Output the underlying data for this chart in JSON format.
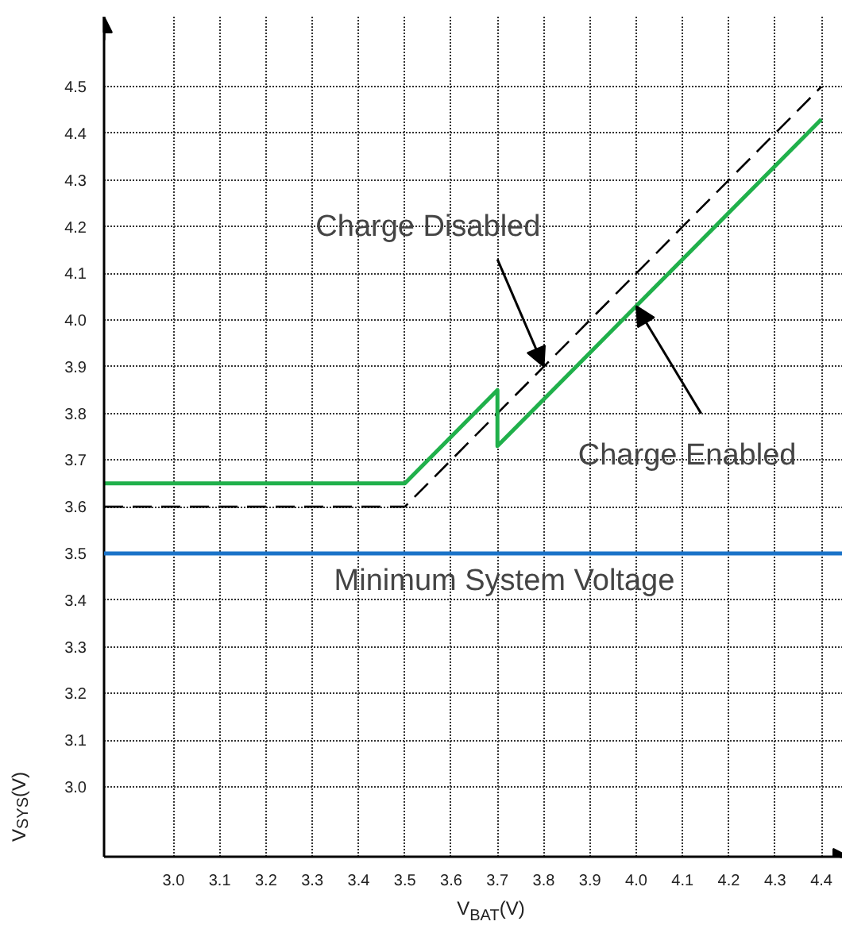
{
  "chart_data": {
    "type": "line",
    "xlabel": "V$_{BAT}$(V)",
    "ylabel": "V$_{SYS}$(V)",
    "xlim": [
      2.85,
      4.46
    ],
    "ylim": [
      2.85,
      4.65
    ],
    "xticks": [
      {
        "value": 3,
        "label": "3.0"
      },
      3.1,
      3.2,
      3.3,
      3.4,
      3.5,
      3.6,
      3.7,
      3.8,
      3.9,
      {
        "value": 4,
        "label": "4.0"
      },
      4.1,
      4.2,
      4.3,
      4.4
    ],
    "yticks": [
      {
        "value": 3,
        "label": "3.0"
      },
      3.1,
      3.2,
      3.3,
      3.4,
      3.5,
      3.6,
      3.7,
      3.8,
      3.9,
      {
        "value": 4,
        "label": "4.0"
      },
      4.1,
      4.2,
      4.3,
      4.4,
      4.5
    ],
    "grid": true,
    "series": [
      {
        "color": "#000000",
        "line_style": "dashed",
        "x": [
          2.85,
          3.5,
          4.4
        ],
        "values": [
          3.6,
          3.6,
          4.5
        ]
      },
      {
        "color": "#20b04b",
        "line_style": "solid",
        "x": [
          2.85,
          3.5,
          3.7,
          3.7,
          4.4
        ],
        "values": [
          3.65,
          3.65,
          3.85,
          3.73,
          4.43
        ]
      }
    ],
    "ref_lines": [
      {
        "axis": "y",
        "value": 3.5,
        "label": "Minimum System Voltage",
        "color": "#1a73c8"
      }
    ],
    "annotations": [
      {
        "text": "Charge Disabled",
        "x": 3.8,
        "y": 3.9
      },
      {
        "text": "Charge Enabled",
        "x": 4.0,
        "y": 4.03
      }
    ]
  }
}
